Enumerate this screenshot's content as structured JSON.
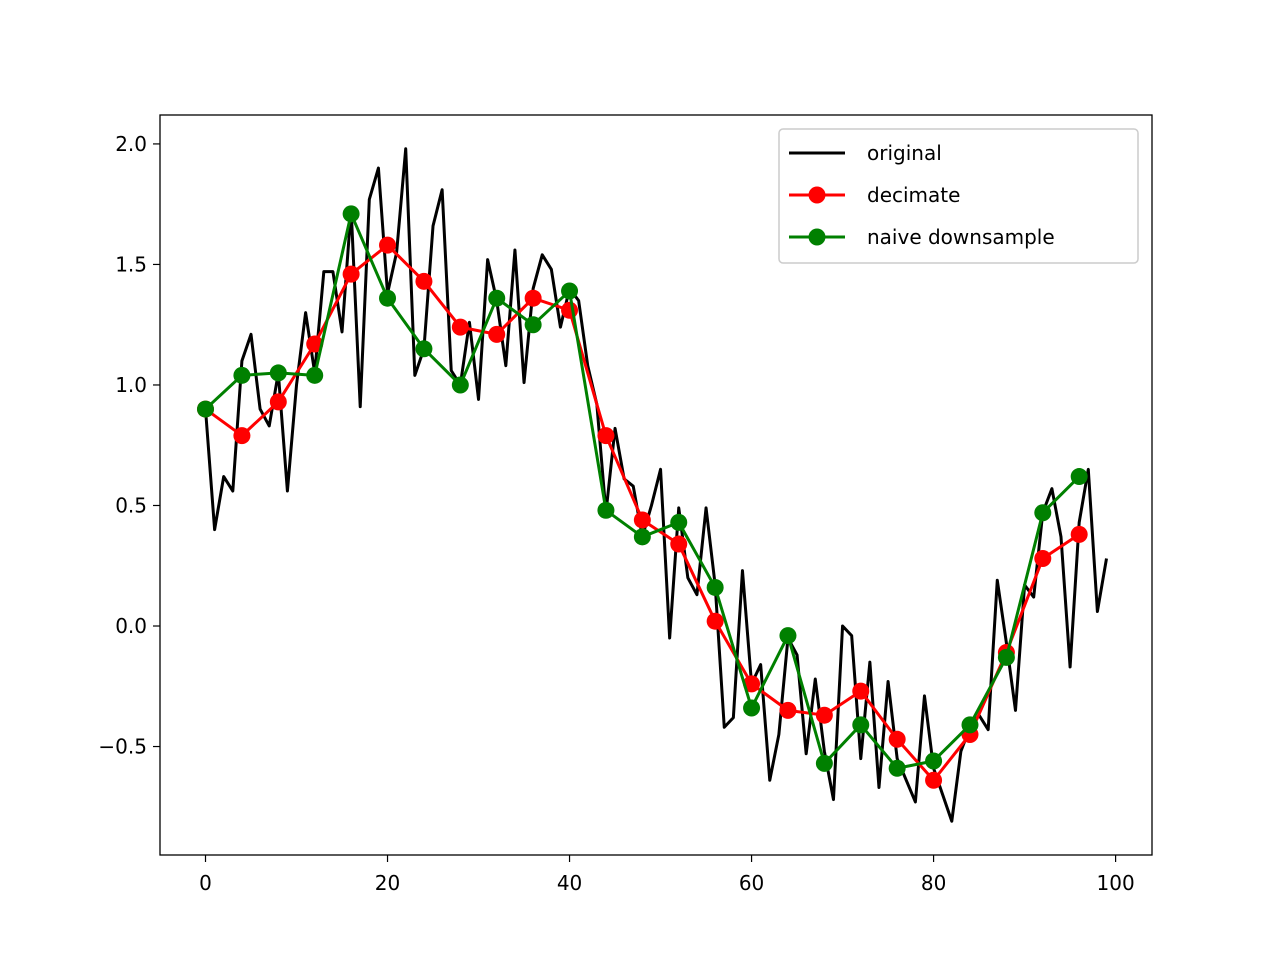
{
  "chart_data": {
    "type": "line",
    "xlim": [
      -5,
      104
    ],
    "ylim": [
      -0.95,
      2.12
    ],
    "x_ticks": [
      0,
      20,
      40,
      60,
      80,
      100
    ],
    "x_tick_labels": [
      "0",
      "20",
      "40",
      "60",
      "80",
      "100"
    ],
    "y_ticks": [
      -0.5,
      0.0,
      0.5,
      1.0,
      1.5,
      2.0
    ],
    "y_tick_labels": [
      "−0.5",
      "0.0",
      "0.5",
      "1.0",
      "1.5",
      "2.0"
    ],
    "grid": false,
    "legend_position": "top-right",
    "series": [
      {
        "name": "original",
        "color": "#000000",
        "markers": false,
        "x": [
          0,
          1,
          2,
          3,
          4,
          5,
          6,
          7,
          8,
          9,
          10,
          11,
          12,
          13,
          14,
          15,
          16,
          17,
          18,
          19,
          20,
          21,
          22,
          23,
          24,
          25,
          26,
          27,
          28,
          29,
          30,
          31,
          32,
          33,
          34,
          35,
          36,
          37,
          38,
          39,
          40,
          41,
          42,
          43,
          44,
          45,
          46,
          47,
          48,
          49,
          50,
          51,
          52,
          53,
          54,
          55,
          56,
          57,
          58,
          59,
          60,
          61,
          62,
          63,
          64,
          65,
          66,
          67,
          68,
          69,
          70,
          71,
          72,
          73,
          74,
          75,
          76,
          77,
          78,
          79,
          80,
          81,
          82,
          83,
          84,
          85,
          86,
          87,
          88,
          89,
          90,
          91,
          92,
          93,
          94,
          95,
          96,
          97,
          98,
          99
        ],
        "y": [
          0.9,
          0.4,
          0.62,
          0.56,
          1.1,
          1.21,
          0.9,
          0.83,
          1.05,
          0.56,
          1.0,
          1.3,
          1.05,
          1.47,
          1.47,
          1.22,
          1.73,
          0.91,
          1.77,
          1.9,
          1.38,
          1.55,
          1.98,
          1.04,
          1.15,
          1.66,
          1.81,
          1.06,
          1.0,
          1.26,
          0.94,
          1.52,
          1.35,
          1.08,
          1.56,
          1.01,
          1.4,
          1.54,
          1.48,
          1.24,
          1.4,
          1.35,
          1.08,
          0.92,
          0.47,
          0.82,
          0.61,
          0.58,
          0.37,
          0.5,
          0.65,
          -0.05,
          0.49,
          0.2,
          0.13,
          0.49,
          0.17,
          -0.42,
          -0.38,
          0.23,
          -0.24,
          -0.16,
          -0.64,
          -0.45,
          -0.05,
          -0.12,
          -0.53,
          -0.22,
          -0.52,
          -0.72,
          0.0,
          -0.04,
          -0.55,
          -0.15,
          -0.67,
          -0.23,
          -0.55,
          -0.64,
          -0.73,
          -0.29,
          -0.59,
          -0.7,
          -0.81,
          -0.52,
          -0.42,
          -0.37,
          -0.43,
          0.19,
          -0.07,
          -0.35,
          0.17,
          0.12,
          0.47,
          0.57,
          0.37,
          -0.17,
          0.43,
          0.65,
          0.06,
          0.28
        ]
      },
      {
        "name": "decimate",
        "color": "#ff0000",
        "markers": true,
        "x": [
          0,
          4,
          8,
          12,
          16,
          20,
          24,
          28,
          32,
          36,
          40,
          44,
          48,
          52,
          56,
          60,
          64,
          68,
          72,
          76,
          80,
          84,
          88,
          92,
          96
        ],
        "y": [
          0.9,
          0.79,
          0.93,
          1.17,
          1.46,
          1.58,
          1.43,
          1.24,
          1.21,
          1.36,
          1.31,
          0.79,
          0.44,
          0.34,
          0.02,
          -0.24,
          -0.35,
          -0.37,
          -0.27,
          -0.47,
          -0.64,
          -0.45,
          -0.11,
          0.28,
          0.38
        ]
      },
      {
        "name": "naive downsample",
        "color": "#008000",
        "markers": true,
        "x": [
          0,
          4,
          8,
          12,
          16,
          20,
          24,
          28,
          32,
          36,
          40,
          44,
          48,
          52,
          56,
          60,
          64,
          68,
          72,
          76,
          80,
          84,
          88,
          92,
          96
        ],
        "y": [
          0.9,
          1.04,
          1.05,
          1.04,
          1.71,
          1.36,
          1.15,
          1.0,
          1.36,
          1.25,
          1.39,
          0.48,
          0.37,
          0.43,
          0.16,
          -0.34,
          -0.04,
          -0.57,
          -0.41,
          -0.59,
          -0.56,
          -0.41,
          -0.13,
          0.47,
          0.62
        ]
      }
    ]
  }
}
